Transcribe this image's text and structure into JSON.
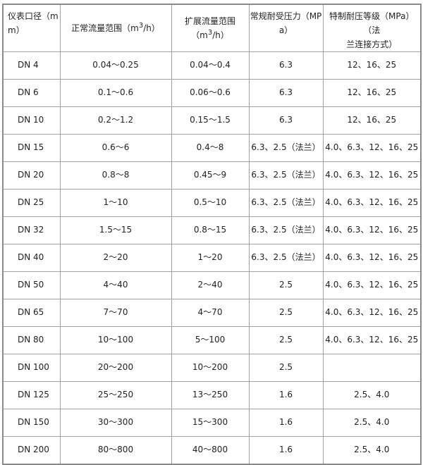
{
  "headers": {
    "size_a": "仪表口径（m",
    "size_b": "m）",
    "normal_flow_a": "正常流量范围（m",
    "normal_flow_sup": "3",
    "normal_flow_b": "/h）",
    "ext_flow_a": "扩展流量范围（m",
    "ext_flow_sup": "3",
    "ext_flow_b": "/h）",
    "pressure_a": "常规耐受压力（MP",
    "pressure_b": "a）",
    "special_a": "特制耐压等级（MPa）（法",
    "special_b": "兰连接方式）"
  },
  "rows": [
    [
      "DN 4",
      "0.04～0.25",
      "0.04～0.4",
      "6.3",
      "12、16、25"
    ],
    [
      "DN 6",
      "0.1～0.6",
      "0.06～0.6",
      "6.3",
      "12、16、25"
    ],
    [
      "DN 10",
      "0.2～1.2",
      "0.15～1.5",
      "6.3",
      "12、16、25"
    ],
    [
      "DN 15",
      "0.6～6",
      "0.4～8",
      "6.3、2.5（法兰）",
      "4.0、6.3、12、16、25"
    ],
    [
      "DN 20",
      "0.8～8",
      "0.45～9",
      "6.3、2.5（法兰）",
      "4.0、6.3、12、16、25"
    ],
    [
      "DN 25",
      "1～10",
      "0.5～10",
      "6.3、2.5（法兰）",
      "4.0、6.3、12、16、25"
    ],
    [
      "DN 32",
      "1.5～15",
      "0.8～15",
      "6.3、2.5（法兰）",
      "4.0、6.3、12、16、25"
    ],
    [
      "DN 40",
      "2～20",
      "1～20",
      "6.3、2.5（法兰）",
      "4.0、6.3、12、16、25"
    ],
    [
      "DN 50",
      "4～40",
      "2～40",
      "2.5",
      "4.0、6.3、12、16、25"
    ],
    [
      "DN 65",
      "7～70",
      "4～70",
      "2.5",
      "4.0、6.3、12、16、25"
    ],
    [
      "DN 80",
      "10～100",
      "5～100",
      "2.5",
      "4.0、6.3、12、16、25"
    ],
    [
      "DN 100",
      "20～200",
      "10～200",
      "2.5",
      ""
    ],
    [
      "DN 125",
      "25～250",
      "13～250",
      "1.6",
      "2.5、4.0"
    ],
    [
      "DN 150",
      "30～300",
      "15～300",
      "1.6",
      "2.5、4.0"
    ],
    [
      "DN 200",
      "80～800",
      "40～800",
      "1.6",
      "2.5、4.0"
    ]
  ]
}
